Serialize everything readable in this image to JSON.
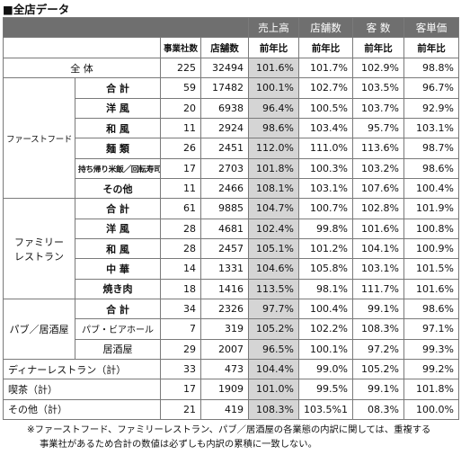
{
  "title": "■全店データ",
  "header": {
    "units_label": "事業社数",
    "stores_label": "店舗数",
    "metric_groups": [
      "売上高",
      "店舗数",
      "客 数",
      "客単価"
    ],
    "yoy_label": "前年比"
  },
  "total_row": {
    "label": "全 体",
    "companies": "225",
    "stores": "32494",
    "sales": "101.6%",
    "storecount": "101.7%",
    "customers": "102.9%",
    "avgspend": "98.8%"
  },
  "categories": [
    {
      "name": "ファーストフード",
      "rows": [
        {
          "label": "合 計",
          "companies": "59",
          "stores": "17482",
          "sales": "100.1%",
          "storecount": "102.7%",
          "customers": "103.5%",
          "avgspend": "96.7%"
        },
        {
          "label": "洋 風",
          "companies": "20",
          "stores": "6938",
          "sales": "96.4%",
          "storecount": "100.5%",
          "customers": "103.7%",
          "avgspend": "92.9%"
        },
        {
          "label": "和 風",
          "companies": "11",
          "stores": "2924",
          "sales": "98.6%",
          "storecount": "103.4%",
          "customers": "95.7%",
          "avgspend": "103.1%"
        },
        {
          "label": "麺 類",
          "companies": "26",
          "stores": "2451",
          "sales": "112.0%",
          "storecount": "111.0%",
          "customers": "113.6%",
          "avgspend": "98.7%"
        },
        {
          "label": "持ち帰り米飯／回転寿司",
          "companies": "17",
          "stores": "2703",
          "sales": "101.8%",
          "storecount": "100.3%",
          "customers": "103.2%",
          "avgspend": "98.6%"
        },
        {
          "label": "その他",
          "companies": "11",
          "stores": "2466",
          "sales": "108.1%",
          "storecount": "103.1%",
          "customers": "107.6%",
          "avgspend": "100.4%"
        }
      ]
    },
    {
      "name_line1": "ファミリー",
      "name_line2": "レストラン",
      "rows": [
        {
          "label": "合 計",
          "companies": "61",
          "stores": "9885",
          "sales": "104.7%",
          "storecount": "100.7%",
          "customers": "102.8%",
          "avgspend": "101.9%"
        },
        {
          "label": "洋 風",
          "companies": "28",
          "stores": "4681",
          "sales": "102.4%",
          "storecount": "99.8%",
          "customers": "101.6%",
          "avgspend": "100.8%"
        },
        {
          "label": "和 風",
          "companies": "28",
          "stores": "2457",
          "sales": "105.1%",
          "storecount": "101.2%",
          "customers": "104.1%",
          "avgspend": "100.9%"
        },
        {
          "label": "中 華",
          "companies": "14",
          "stores": "1331",
          "sales": "104.6%",
          "storecount": "105.8%",
          "customers": "103.1%",
          "avgspend": "101.5%"
        },
        {
          "label": "焼き肉",
          "companies": "18",
          "stores": "1416",
          "sales": "113.5%",
          "storecount": "98.1%",
          "customers": "111.7%",
          "avgspend": "101.6%"
        }
      ]
    },
    {
      "name": "パブ／居酒屋",
      "rows": [
        {
          "label": "合 計",
          "companies": "34",
          "stores": "2326",
          "sales": "97.7%",
          "storecount": "100.4%",
          "customers": "99.1%",
          "avgspend": "98.6%"
        },
        {
          "label": "パブ・ビアホール",
          "companies": "7",
          "stores": "319",
          "sales": "105.2%",
          "storecount": "102.2%",
          "customers": "108.3%",
          "avgspend": "97.1%"
        },
        {
          "label": "居酒屋",
          "companies": "29",
          "stores": "2007",
          "sales": "96.5%",
          "storecount": "100.1%",
          "customers": "97.2%",
          "avgspend": "99.3%"
        }
      ]
    }
  ],
  "bottom_rows": [
    {
      "label": "ディナーレストラン（計）",
      "companies": "33",
      "stores": "473",
      "sales": "104.4%",
      "storecount": "99.0%",
      "customers": "105.2%",
      "avgspend": "99.2%"
    },
    {
      "label": "喫茶（計）",
      "companies": "17",
      "stores": "1909",
      "sales": "101.0%",
      "storecount": "99.5%",
      "customers": "99.1%",
      "avgspend": "101.8%"
    },
    {
      "label": "その他（計）",
      "companies": "21",
      "stores": "419",
      "sales": "108.3%",
      "storecount": "103.5%1",
      "customers": "08.3%",
      "avgspend": "100.0%"
    }
  ],
  "footnote": {
    "line1": "※ファーストフード、ファミリーレストラン、パブ／居酒屋の各業態の内訳に関しては、重複する",
    "line2": "事業社があるため合計の数値は必ずしも内訳の累積に一致しない。"
  },
  "colors": {
    "header_bg": "#6f6f6f",
    "header_text": "#ffffff",
    "sales_shade": "#d5d5d5",
    "border": "#7a7a7a"
  }
}
